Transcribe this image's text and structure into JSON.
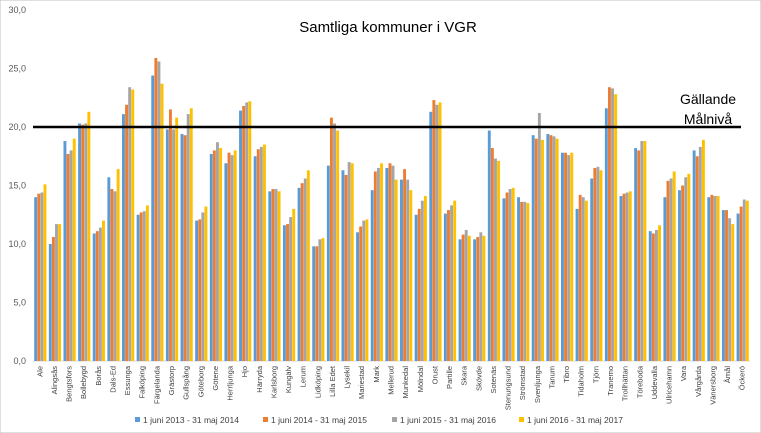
{
  "chart_data": {
    "type": "bar",
    "title": "Samtliga kommuner i VGR",
    "xlabel": "",
    "ylabel": "",
    "ylim": [
      0,
      30
    ],
    "yticks": [
      "0,0",
      "5,0",
      "10,0",
      "15,0",
      "20,0",
      "25,0",
      "30,0"
    ],
    "grid": false,
    "legend_position": "bottom",
    "categories": [
      "Ale",
      "Alingsås",
      "Bengtsfors",
      "Bollebygd",
      "Borås",
      "Dals-Ed",
      "Essunga",
      "Falköping",
      "Färgelanda",
      "Grästorp",
      "Gullspång",
      "Göteborg",
      "Götene",
      "Herrljunga",
      "Hjo",
      "Härryda",
      "Karlsborg",
      "Kungälv",
      "Lerum",
      "Lidköping",
      "Lilla Edet",
      "Lysekil",
      "Mariestad",
      "Mark",
      "Mellerud",
      "Munkedal",
      "Mölndal",
      "Orust",
      "Partille",
      "Skara",
      "Skövde",
      "Sotenäs",
      "Stenungsund",
      "Strömstad",
      "Svenljunga",
      "Tanum",
      "Tibro",
      "Tidaholm",
      "Tjörn",
      "Tranemo",
      "Trollhättan",
      "Töreboda",
      "Uddevalla",
      "Ulricehamn",
      "Vara",
      "Vårgårda",
      "Vänersborg",
      "Åmål",
      "Öckerö"
    ],
    "series": [
      {
        "name": "1 juni 2013 - 31 maj 2014",
        "color": "#5b9bd5",
        "values": [
          14.0,
          10.0,
          18.8,
          20.3,
          10.9,
          15.7,
          21.1,
          12.5,
          24.4,
          19.8,
          19.4,
          12.0,
          17.7,
          16.9,
          21.4,
          17.5,
          14.5,
          11.6,
          14.8,
          9.8,
          16.7,
          16.3,
          11.0,
          14.6,
          16.5,
          15.5,
          12.5,
          21.3,
          12.6,
          10.4,
          10.4,
          19.7,
          13.9,
          14.0,
          19.3,
          19.4,
          17.8,
          13.0,
          15.6,
          21.6,
          14.1,
          18.2,
          11.1,
          14.0,
          14.6,
          18.0,
          14.0,
          12.9,
          12.6
        ]
      },
      {
        "name": "1 juni 2014 - 31 maj 2015",
        "color": "#ed7d31",
        "values": [
          14.3,
          10.6,
          17.7,
          20.2,
          11.1,
          14.7,
          21.9,
          12.7,
          25.9,
          21.5,
          19.3,
          12.1,
          18.0,
          17.8,
          21.8,
          18.1,
          14.7,
          11.7,
          15.2,
          9.8,
          20.8,
          15.9,
          11.5,
          16.2,
          16.9,
          16.4,
          13.0,
          22.3,
          12.9,
          10.8,
          10.6,
          18.2,
          14.4,
          13.6,
          19.0,
          19.3,
          17.8,
          14.2,
          16.5,
          23.4,
          14.3,
          18.0,
          10.9,
          15.4,
          15.0,
          17.5,
          14.2,
          12.9,
          13.2
        ]
      },
      {
        "name": "1 juni 2015 - 31 maj 2016",
        "color": "#a5a5a5",
        "values": [
          14.4,
          11.7,
          18.0,
          20.3,
          11.4,
          14.5,
          23.4,
          12.8,
          25.6,
          19.8,
          21.1,
          12.7,
          18.7,
          17.6,
          22.1,
          18.3,
          14.7,
          12.3,
          15.6,
          10.4,
          20.3,
          17.0,
          12.0,
          16.5,
          16.7,
          15.5,
          13.7,
          21.9,
          13.3,
          11.2,
          11.0,
          17.3,
          14.7,
          13.6,
          21.2,
          19.2,
          17.6,
          14.0,
          16.6,
          23.3,
          14.4,
          18.8,
          11.2,
          15.6,
          15.7,
          18.3,
          14.1,
          12.2,
          13.8
        ]
      },
      {
        "name": "1 juni 2016 - 31 maj 2017",
        "color": "#ffc000",
        "values": [
          15.1,
          11.7,
          19.0,
          21.3,
          12.0,
          16.4,
          23.2,
          13.3,
          23.7,
          20.8,
          21.6,
          13.2,
          18.2,
          18.0,
          22.2,
          18.5,
          14.5,
          13.0,
          16.3,
          10.5,
          19.7,
          16.9,
          12.1,
          16.9,
          15.5,
          14.6,
          14.1,
          22.1,
          13.7,
          10.7,
          10.7,
          17.1,
          14.8,
          13.5,
          18.9,
          19.0,
          17.8,
          13.7,
          16.3,
          22.8,
          14.5,
          18.8,
          11.6,
          16.2,
          16.0,
          18.9,
          14.1,
          11.7,
          13.7
        ]
      }
    ],
    "annotations": [
      {
        "type": "hline",
        "y": 20,
        "label": "Gällande Målnivå",
        "label_lines": [
          "Gällande",
          "Målnivå"
        ]
      }
    ]
  }
}
